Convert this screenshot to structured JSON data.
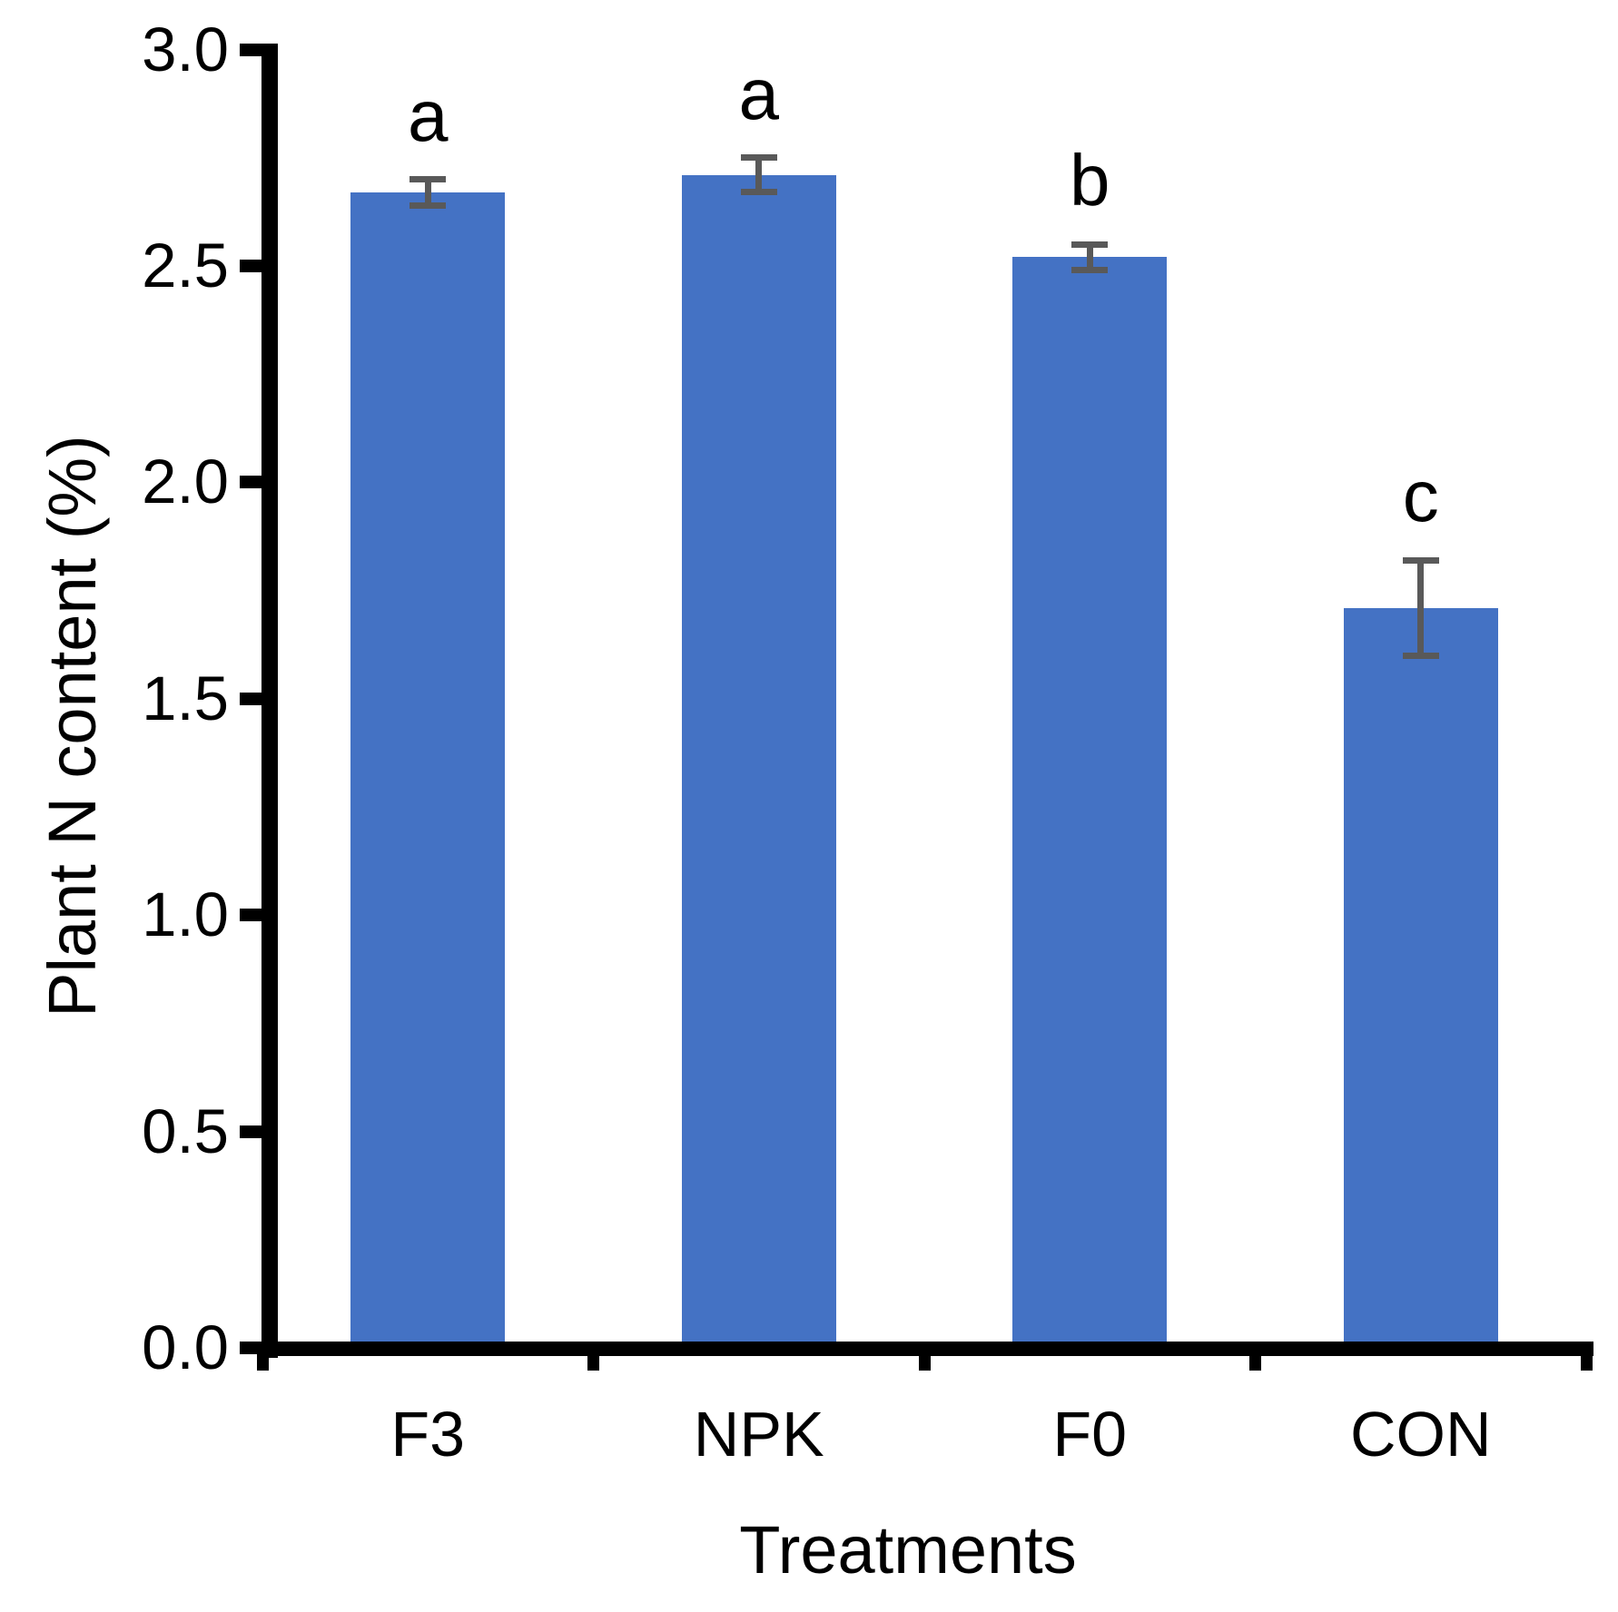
{
  "chart_data": {
    "type": "bar",
    "title": "",
    "xlabel": "Treatments",
    "ylabel": "Plant N content (%)",
    "categories": [
      "F3",
      "NPK",
      "F0",
      "CON"
    ],
    "values": [
      2.67,
      2.71,
      2.52,
      1.71
    ],
    "error_bars": [
      0.03,
      0.04,
      0.03,
      0.11
    ],
    "sig_letters": [
      "a",
      "a",
      "b",
      "c"
    ],
    "y_ticks": [
      "0.0",
      "0.5",
      "1.0",
      "1.5",
      "2.0",
      "2.5",
      "3.0"
    ],
    "ylim": [
      0.0,
      3.0
    ],
    "grid": "off",
    "legend": "none",
    "bar_color": "#4472C4",
    "error_bar_color": "#595959",
    "axis_color": "#000000",
    "text_color": "#000000"
  }
}
